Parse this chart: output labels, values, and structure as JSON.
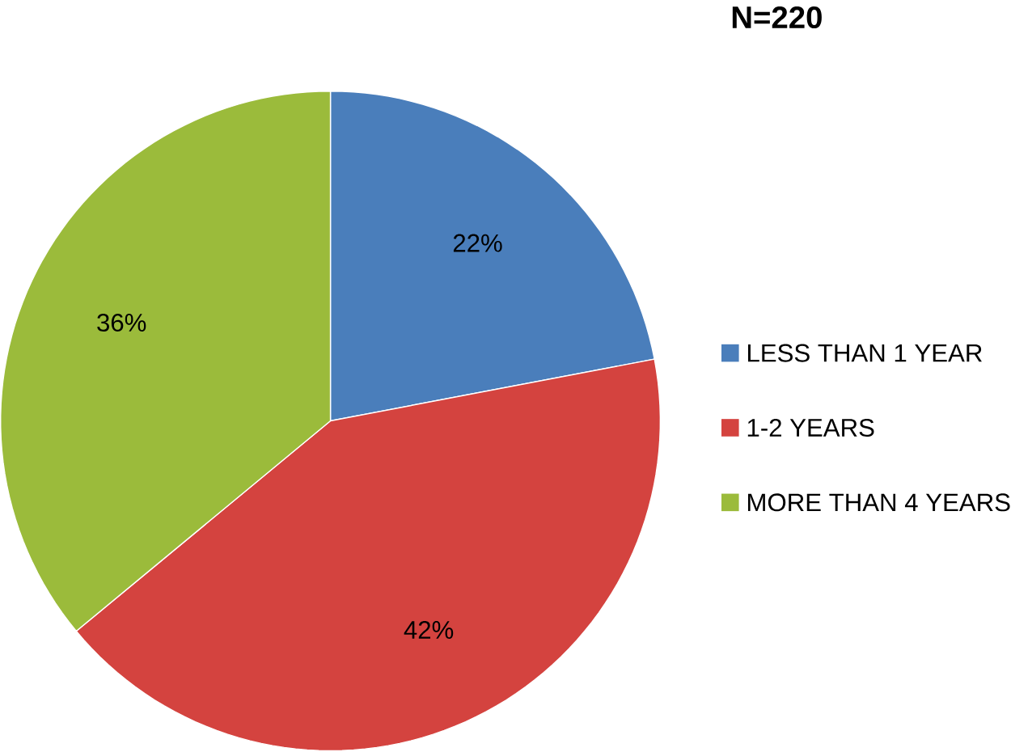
{
  "chart_data": {
    "type": "pie",
    "title": "N=220",
    "categories": [
      "LESS THAN 1 YEAR",
      "1-2 YEARS",
      "MORE THAN 4 YEARS"
    ],
    "values": [
      22,
      42,
      36
    ],
    "value_labels": [
      "22%",
      "42%",
      "36%"
    ],
    "colors": [
      "#4a7ebb",
      "#d4433f",
      "#9bbb3b"
    ],
    "legend": "right"
  }
}
